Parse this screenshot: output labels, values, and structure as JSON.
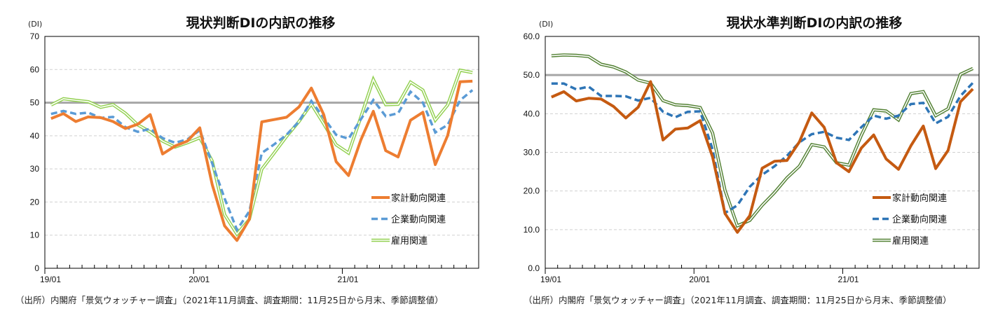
{
  "chart_data": [
    {
      "type": "line",
      "title": "現状判断DIの内訳の推移",
      "ylabel": "(DI)",
      "ylim": [
        0,
        70
      ],
      "yticks": [
        "0",
        "10",
        "20",
        "30",
        "40",
        "50",
        "60",
        "70"
      ],
      "ytick_values": [
        0,
        10,
        20,
        30,
        40,
        50,
        60,
        70
      ],
      "x_start": "19/01",
      "x_end": "21/11",
      "xtick_labels": [
        "19/01",
        "20/01",
        "21/01"
      ],
      "reference_line": 50,
      "grid": true,
      "legend_position": "bottom-right",
      "note": "（出所）内閣府「景気ウォッチャー調査」（2021年11月調査、調査期間：11月25日から月末、季節調整値）",
      "colors": {
        "household": "#ED7D31",
        "corporate": "#5B9BD5",
        "employment": "#92D050",
        "reference": "#A6A6A6"
      },
      "series": [
        {
          "name": "家計動向関連",
          "style": "solid",
          "values": [
            45.2,
            46.7,
            44.3,
            45.7,
            45.5,
            44.3,
            42.2,
            43.5,
            46.4,
            34.5,
            36.9,
            38.4,
            42.4,
            25.3,
            12.8,
            8.4,
            14.8,
            44.2,
            44.9,
            45.6,
            48.7,
            54.4,
            46.4,
            32.2,
            28.0,
            38.8,
            47.4,
            35.5,
            33.6,
            44.7,
            47.1,
            31.3,
            40.1,
            56.3,
            56.5
          ]
        },
        {
          "name": "企業動向関連",
          "style": "dashed",
          "values": [
            46.6,
            47.5,
            46.6,
            47.0,
            45.4,
            45.7,
            42.6,
            41.2,
            42.1,
            39.3,
            37.9,
            38.9,
            41.7,
            31.7,
            21.1,
            11.6,
            17.2,
            34.8,
            37.4,
            40.3,
            44.3,
            50.5,
            45.4,
            40.3,
            39.1,
            45.0,
            50.8,
            45.9,
            46.8,
            53.3,
            50.0,
            41.0,
            43.3,
            50.7,
            53.8
          ]
        },
        {
          "name": "雇用関連",
          "style": "double",
          "values": [
            49.3,
            51.2,
            50.7,
            50.3,
            48.6,
            49.4,
            46.8,
            43.3,
            41.2,
            38.4,
            36.6,
            37.9,
            39.4,
            32.4,
            16.2,
            10.3,
            14.8,
            29.9,
            34.8,
            39.8,
            44.3,
            49.6,
            43.6,
            37.3,
            34.8,
            45.7,
            57.0,
            49.4,
            49.5,
            56.2,
            53.8,
            44.7,
            49.3,
            59.8,
            59.1
          ]
        }
      ]
    },
    {
      "type": "line",
      "title": "現状水準判断DIの内訳の推移",
      "ylabel": "(DI)",
      "ylim": [
        0,
        60
      ],
      "yticks": [
        "0.0",
        "10.0",
        "20.0",
        "30.0",
        "40.0",
        "50.0",
        "60.0"
      ],
      "ytick_values": [
        0,
        10,
        20,
        30,
        40,
        50,
        60
      ],
      "x_start": "19/01",
      "x_end": "21/11",
      "xtick_labels": [
        "19/01",
        "20/01",
        "21/01"
      ],
      "reference_line": 50,
      "grid": true,
      "legend_position": "bottom-right",
      "note": "（出所）内閣府「景気ウォッチャー調査」（2021年11月調査、調査期間：11月25日から月末、季節調整値）",
      "colors": {
        "household": "#C55A11",
        "corporate": "#2E75B6",
        "employment": "#548235",
        "reference": "#A6A6A6"
      },
      "series": [
        {
          "name": "家計動向関連",
          "style": "solid",
          "values": [
            44.3,
            45.7,
            43.3,
            44.0,
            43.8,
            41.9,
            38.9,
            41.7,
            48.3,
            33.2,
            36.0,
            36.3,
            38.2,
            28.8,
            14.2,
            9.3,
            13.6,
            25.9,
            27.7,
            27.9,
            32.7,
            40.2,
            36.5,
            27.3,
            25.0,
            31.1,
            34.5,
            28.3,
            25.6,
            31.7,
            36.8,
            25.8,
            30.5,
            43.1,
            46.4
          ]
        },
        {
          "name": "企業動向関連",
          "style": "dashed",
          "values": [
            47.8,
            47.8,
            46.3,
            47.0,
            44.6,
            44.6,
            44.5,
            43.4,
            44.1,
            40.5,
            39.1,
            40.5,
            40.6,
            30.8,
            14.3,
            16.3,
            21.1,
            24.2,
            26.4,
            29.1,
            32.6,
            34.7,
            35.3,
            33.8,
            33.2,
            36.5,
            39.5,
            38.7,
            39.5,
            42.5,
            42.8,
            37.5,
            39.2,
            44.6,
            48.0
          ]
        },
        {
          "name": "雇用関連",
          "style": "double",
          "values": [
            55.0,
            55.2,
            55.1,
            54.8,
            52.8,
            52.1,
            50.8,
            48.7,
            47.9,
            43.4,
            42.3,
            42.1,
            41.6,
            35.0,
            20.2,
            11.0,
            12.4,
            16.3,
            19.6,
            23.4,
            26.4,
            32.0,
            31.4,
            27.3,
            26.7,
            34.4,
            41.0,
            40.7,
            38.4,
            45.2,
            45.7,
            39.5,
            41.3,
            50.2,
            51.7
          ]
        }
      ]
    }
  ]
}
